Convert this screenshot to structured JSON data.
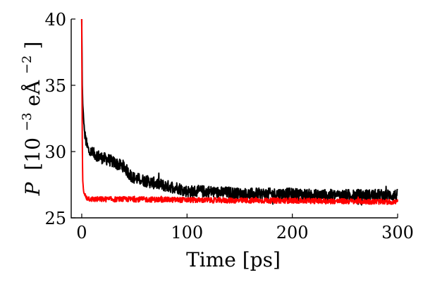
{
  "chart_data": {
    "type": "line",
    "xlabel": "Time [ps]",
    "ylabel": "P [10⁻³eÅ⁻²]",
    "ylabel_parts": {
      "var": "P",
      "open": "[10",
      "exp1": "−3",
      "unit": "eÅ",
      "exp2": "−2",
      "close": "]"
    },
    "xlim": [
      -10,
      300
    ],
    "ylim": [
      25,
      40
    ],
    "xticks": [
      0,
      100,
      200,
      300
    ],
    "yticks": [
      25,
      30,
      35,
      40
    ],
    "grid": false,
    "legend": "none",
    "series": [
      {
        "color": "#000000",
        "noise": 0.45,
        "x": [
          0,
          0.5,
          1,
          2,
          3,
          5,
          7,
          10,
          15,
          20,
          25,
          30,
          35,
          40,
          45,
          50,
          55,
          60,
          70,
          80,
          90,
          100,
          110,
          120,
          130,
          140,
          150,
          160,
          170,
          180,
          190,
          200,
          220,
          240,
          260,
          280,
          300
        ],
        "y": [
          40.0,
          35.0,
          33.5,
          32.2,
          31.2,
          30.4,
          30.0,
          29.9,
          29.7,
          29.5,
          29.4,
          29.2,
          29.0,
          28.9,
          28.3,
          28.0,
          27.9,
          27.8,
          27.6,
          27.4,
          27.3,
          27.0,
          27.0,
          27.0,
          26.9,
          26.9,
          26.8,
          26.8,
          26.8,
          26.8,
          26.8,
          26.8,
          26.7,
          26.7,
          26.7,
          26.7,
          26.7
        ]
      },
      {
        "color": "#ff0000",
        "noise": 0.2,
        "x": [
          0,
          0.3,
          0.6,
          1,
          1.5,
          2,
          3,
          5,
          10,
          20,
          50,
          100,
          150,
          200,
          250,
          300
        ],
        "y": [
          40.0,
          34.0,
          29.5,
          27.8,
          27.2,
          26.9,
          26.7,
          26.5,
          26.4,
          26.4,
          26.4,
          26.35,
          26.3,
          26.3,
          26.25,
          26.2
        ]
      }
    ]
  }
}
